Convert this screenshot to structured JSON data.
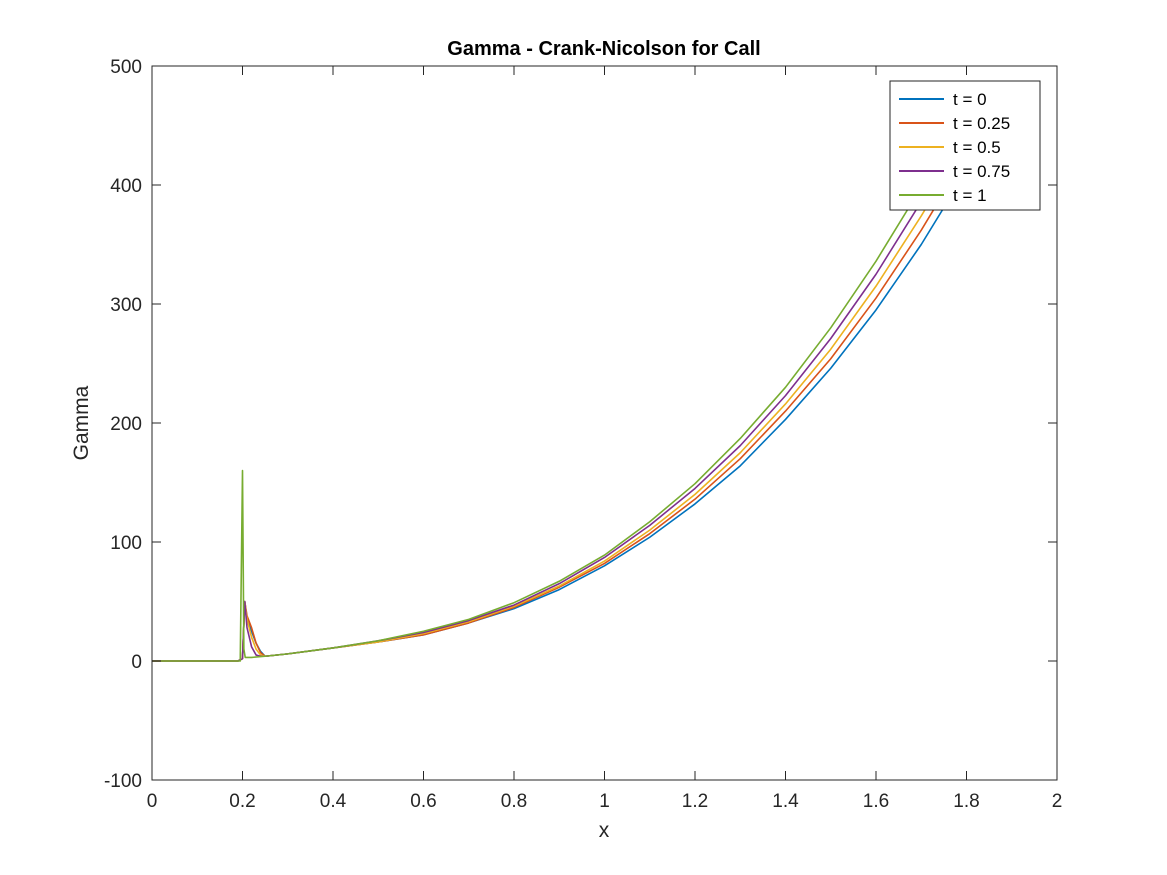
{
  "chart_data": {
    "type": "line",
    "title": "Gamma - Crank-Nicolson for Call",
    "xlabel": "x",
    "ylabel": "Gamma",
    "xlim": [
      0,
      2
    ],
    "ylim": [
      -100,
      500
    ],
    "xticks": [
      0,
      0.2,
      0.4,
      0.6,
      0.8,
      1,
      1.2,
      1.4,
      1.6,
      1.8,
      2
    ],
    "xtick_labels": [
      "0",
      "0.2",
      "0.4",
      "0.6",
      "0.8",
      "1",
      "1.2",
      "1.4",
      "1.6",
      "1.8",
      "2"
    ],
    "yticks": [
      -100,
      0,
      100,
      200,
      300,
      400,
      500
    ],
    "ytick_labels": [
      "-100",
      "0",
      "100",
      "200",
      "300",
      "400",
      "500"
    ],
    "grid": false,
    "legend_position": "top-right",
    "series": [
      {
        "name": "t = 0",
        "color": "#0072BD",
        "x": [
          0,
          0.19,
          0.2,
          0.205,
          0.21,
          0.22,
          0.23,
          0.24,
          0.25,
          0.3,
          0.4,
          0.5,
          0.6,
          0.7,
          0.8,
          0.9,
          1.0,
          1.1,
          1.2,
          1.3,
          1.4,
          1.5,
          1.6,
          1.7,
          1.8,
          1.84
        ],
        "y": [
          0,
          0,
          2,
          50,
          35,
          25,
          15,
          8,
          4,
          6,
          11,
          16,
          22,
          32,
          44,
          60,
          80,
          104,
          132,
          164,
          203,
          246,
          295,
          350,
          412,
          437
        ]
      },
      {
        "name": "t = 0.25",
        "color": "#D95319",
        "x": [
          0,
          0.19,
          0.2,
          0.205,
          0.21,
          0.22,
          0.23,
          0.24,
          0.25,
          0.3,
          0.4,
          0.5,
          0.6,
          0.7,
          0.8,
          0.9,
          1.0,
          1.1,
          1.2,
          1.3,
          1.4,
          1.5,
          1.6,
          1.7,
          1.8,
          1.82
        ],
        "y": [
          0,
          0,
          2,
          50,
          38,
          28,
          15,
          7,
          4,
          6,
          11,
          16,
          22,
          32,
          45,
          62,
          82,
          107,
          136,
          170,
          210,
          254,
          305,
          362,
          425,
          437
        ]
      },
      {
        "name": "t = 0.5",
        "color": "#EDB120",
        "x": [
          0,
          0.19,
          0.2,
          0.205,
          0.21,
          0.22,
          0.23,
          0.24,
          0.25,
          0.3,
          0.4,
          0.5,
          0.6,
          0.7,
          0.8,
          0.9,
          1.0,
          1.1,
          1.2,
          1.3,
          1.4,
          1.5,
          1.6,
          1.7,
          1.8
        ],
        "y": [
          0,
          0,
          2,
          50,
          35,
          20,
          10,
          5,
          4,
          6,
          11,
          16,
          23,
          33,
          46,
          63,
          84,
          110,
          140,
          175,
          216,
          262,
          315,
          374,
          437
        ]
      },
      {
        "name": "t = 0.75",
        "color": "#7E2F8E",
        "x": [
          0,
          0.19,
          0.2,
          0.205,
          0.21,
          0.22,
          0.23,
          0.24,
          0.25,
          0.3,
          0.4,
          0.5,
          0.6,
          0.7,
          0.8,
          0.9,
          1.0,
          1.1,
          1.2,
          1.3,
          1.4,
          1.5,
          1.6,
          1.7,
          1.78
        ],
        "y": [
          0,
          0,
          2,
          50,
          28,
          12,
          5,
          4,
          4,
          6,
          11,
          17,
          24,
          34,
          47,
          65,
          87,
          114,
          145,
          181,
          223,
          271,
          325,
          386,
          437
        ]
      },
      {
        "name": "t = 1",
        "color": "#77AC30",
        "x": [
          0,
          0.19,
          0.195,
          0.2,
          0.203,
          0.206,
          0.21,
          0.22,
          0.25,
          0.3,
          0.4,
          0.5,
          0.6,
          0.7,
          0.8,
          0.9,
          1.0,
          1.1,
          1.2,
          1.3,
          1.4,
          1.5,
          1.6,
          1.7,
          1.76
        ],
        "y": [
          0,
          0,
          0,
          160,
          10,
          3,
          3,
          3,
          4,
          6,
          11,
          17,
          25,
          35,
          49,
          67,
          89,
          117,
          149,
          187,
          230,
          280,
          336,
          398,
          437
        ]
      }
    ]
  }
}
